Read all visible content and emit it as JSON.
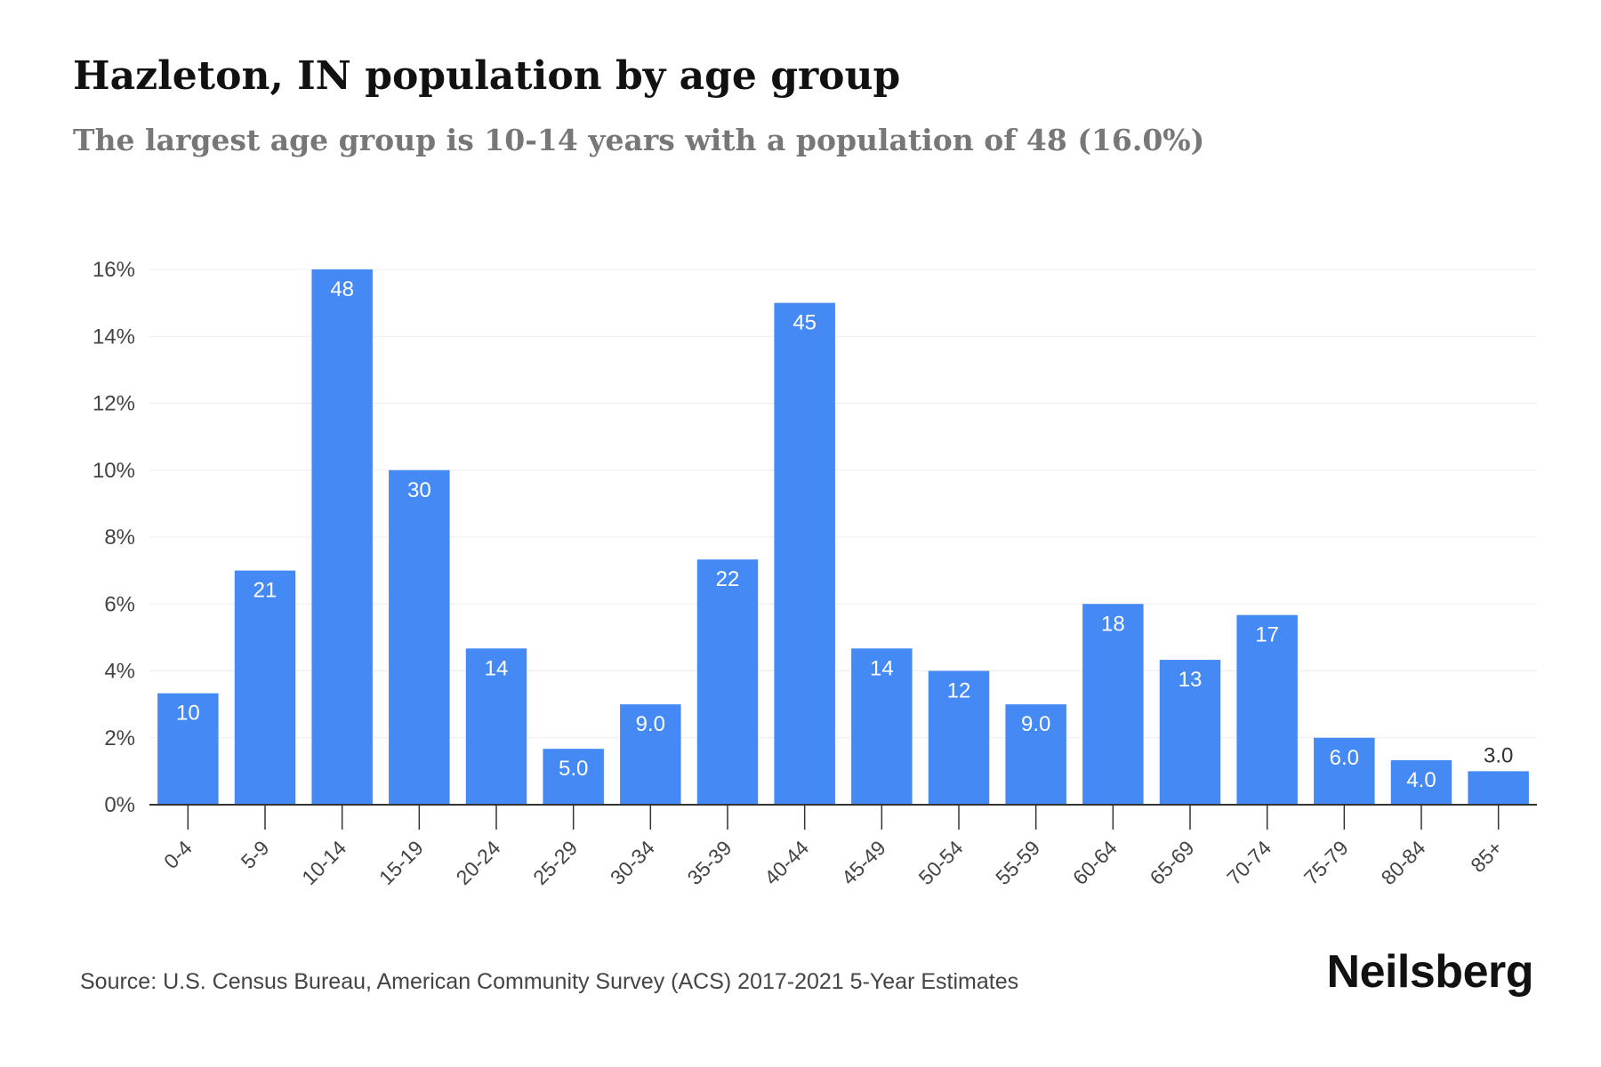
{
  "header": {
    "title": "Hazleton, IN population by age group",
    "subtitle": "The largest age group is 10-14 years with a population of 48 (16.0%)"
  },
  "footer": {
    "source": "Source: U.S. Census Bureau, American Community Survey (ACS) 2017-2021 5-Year Estimates",
    "brand": "Neilsberg"
  },
  "chart_data": {
    "type": "bar",
    "title": "Hazleton, IN population by age group",
    "subtitle": "The largest age group is 10-14 years with a population of 48 (16.0%)",
    "xlabel": "",
    "ylabel": "",
    "categories": [
      "0-4",
      "5-9",
      "10-14",
      "15-19",
      "20-24",
      "25-29",
      "30-34",
      "35-39",
      "40-44",
      "45-49",
      "50-54",
      "55-59",
      "60-64",
      "65-69",
      "70-74",
      "75-79",
      "80-84",
      "85+"
    ],
    "values": [
      3.33,
      7.0,
      16.0,
      10.0,
      4.67,
      1.67,
      3.0,
      7.33,
      15.0,
      4.67,
      4.0,
      3.0,
      6.0,
      4.33,
      5.67,
      2.0,
      1.33,
      1.0
    ],
    "data_labels": [
      "10",
      "21",
      "48",
      "30",
      "14",
      "5.0",
      "9.0",
      "22",
      "45",
      "14",
      "12",
      "9.0",
      "18",
      "13",
      "17",
      "6.0",
      "4.0",
      "3.0"
    ],
    "ylim": [
      0,
      16
    ],
    "yticks": [
      "0%",
      "2%",
      "4%",
      "6%",
      "8%",
      "10%",
      "12%",
      "14%",
      "16%"
    ],
    "ytick_values": [
      0,
      2,
      4,
      6,
      8,
      10,
      12,
      14,
      16
    ],
    "grid": true,
    "legend": "none",
    "bar_color": "#4589f5",
    "label_color_inside": "#ffffff",
    "label_color_outside": "#333333"
  }
}
